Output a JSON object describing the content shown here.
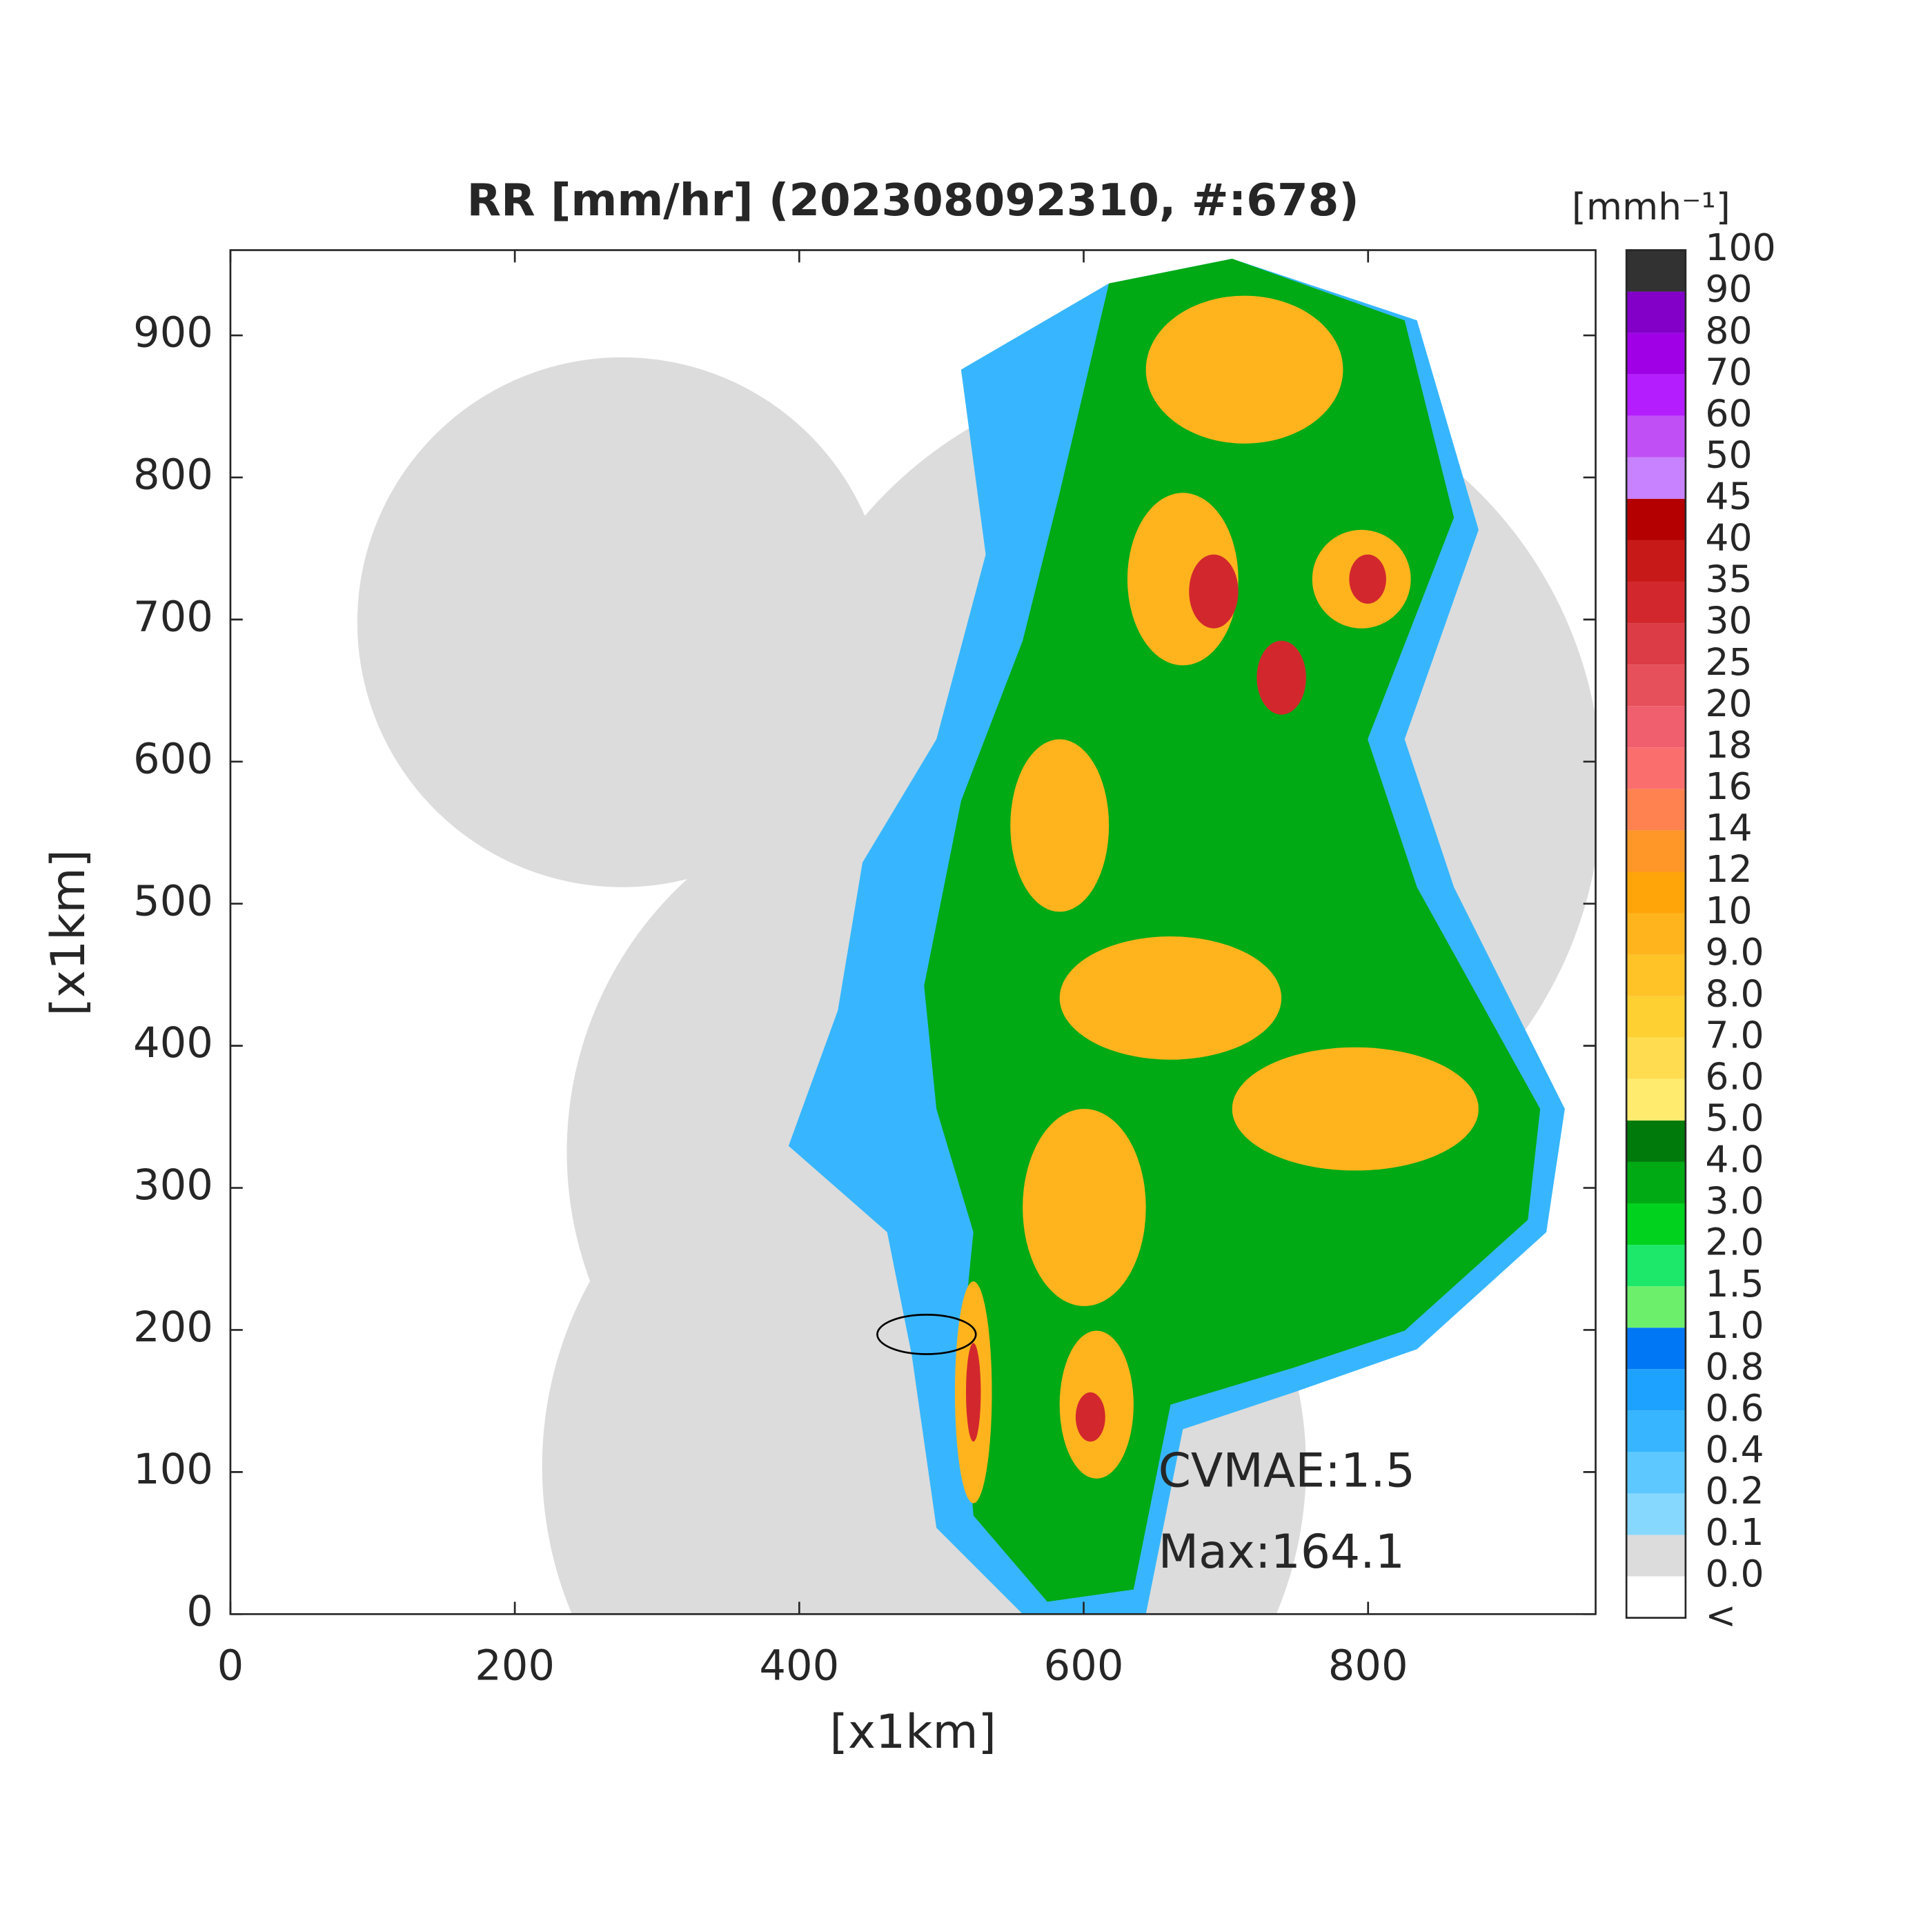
{
  "title": "RR [mm/hr] (202308092310, #:678)",
  "x_axis": {
    "label": "[x1km]",
    "lim": [
      0,
      960
    ],
    "ticks": [
      0,
      200,
      400,
      600,
      800
    ]
  },
  "y_axis": {
    "label": "[x1km]",
    "lim": [
      0,
      960
    ],
    "ticks": [
      0,
      100,
      200,
      300,
      400,
      500,
      600,
      700,
      800,
      900
    ]
  },
  "colorbar": {
    "label": "[mmh⁻¹]",
    "ticks": [
      "<",
      "0.0",
      "0.1",
      "0.2",
      "0.4",
      "0.6",
      "0.8",
      "1.0",
      "1.5",
      "2.0",
      "3.0",
      "4.0",
      "5.0",
      "6.0",
      "7.0",
      "8.0",
      "9.0",
      "10",
      "12",
      "14",
      "16",
      "18",
      "20",
      "25",
      "30",
      "35",
      "40",
      "45",
      "50",
      "60",
      "70",
      "80",
      "90",
      "100"
    ],
    "colors": [
      "#ffffff",
      "#dcdcdc",
      "#87d8ff",
      "#5cc8ff",
      "#37b6ff",
      "#1ea2ff",
      "#0078f5",
      "#6cf06c",
      "#1ee86a",
      "#00d21e",
      "#00aa14",
      "#007a0a",
      "#ffec6e",
      "#ffdc50",
      "#ffd032",
      "#ffc328",
      "#ffb41e",
      "#ffa50a",
      "#ff9628",
      "#ff8250",
      "#fa6e6e",
      "#f05f6e",
      "#e6505a",
      "#dc3c46",
      "#d2282d",
      "#c81919",
      "#b40000",
      "#c882ff",
      "#c050f5",
      "#b41eff",
      "#a000e6",
      "#8200c8",
      "#323232"
    ]
  },
  "annotations": [
    "CVMAE:1.5",
    "Max:164.1"
  ]
}
